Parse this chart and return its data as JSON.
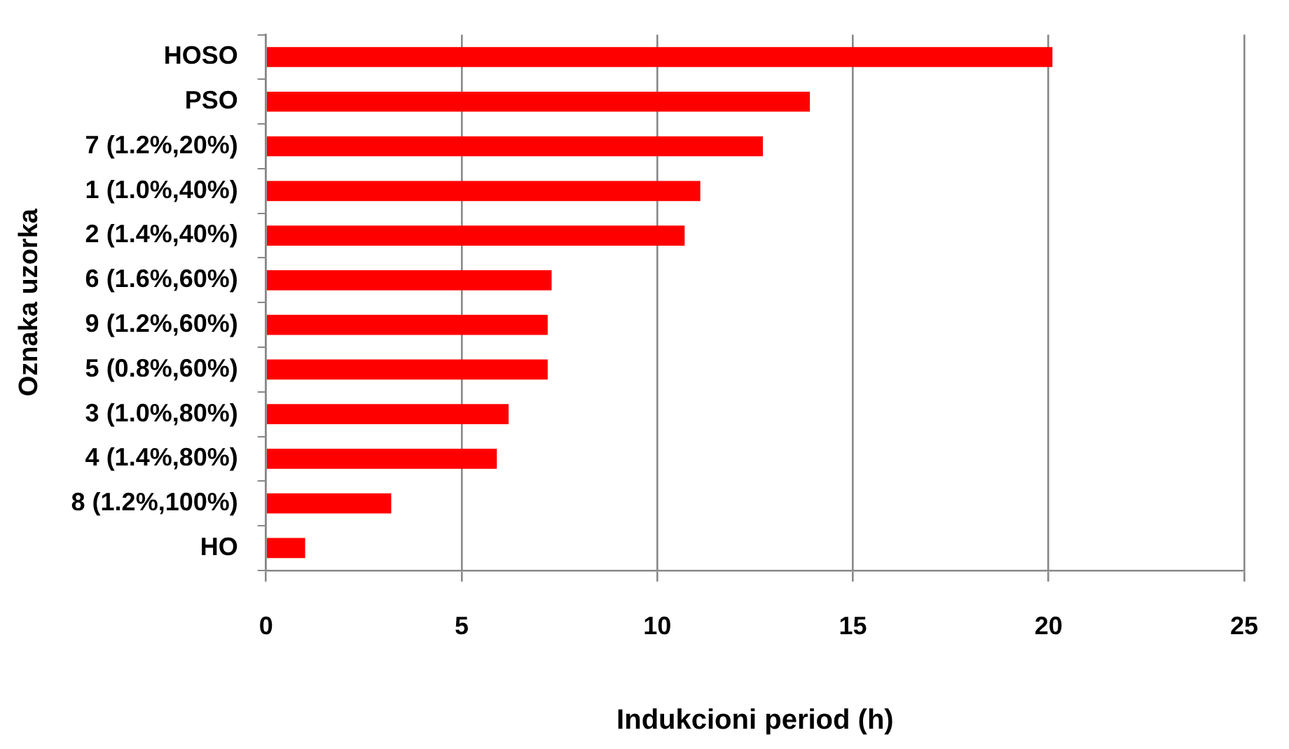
{
  "chart_data": {
    "type": "bar",
    "orientation": "horizontal",
    "xlabel": "Indukcioni period (h)",
    "ylabel": "Oznaka uzorka",
    "categories": [
      "HOSO",
      "PSO",
      "7 (1.2%,20%)",
      "1 (1.0%,40%)",
      "2 (1.4%,40%)",
      "6 (1.6%,60%)",
      "9 (1.2%,60%)",
      "5 (0.8%,60%)",
      "3 (1.0%,80%)",
      "4 (1.4%,80%)",
      "8 (1.2%,100%)",
      "HO"
    ],
    "values": [
      20.1,
      13.9,
      12.7,
      11.1,
      10.7,
      7.3,
      7.2,
      7.2,
      6.2,
      5.9,
      3.2,
      1.0
    ],
    "color": "#ff0000",
    "xlim": [
      0,
      25
    ],
    "xticks": [
      0,
      5,
      10,
      15,
      20,
      25
    ],
    "grid": "x",
    "legend": false
  }
}
